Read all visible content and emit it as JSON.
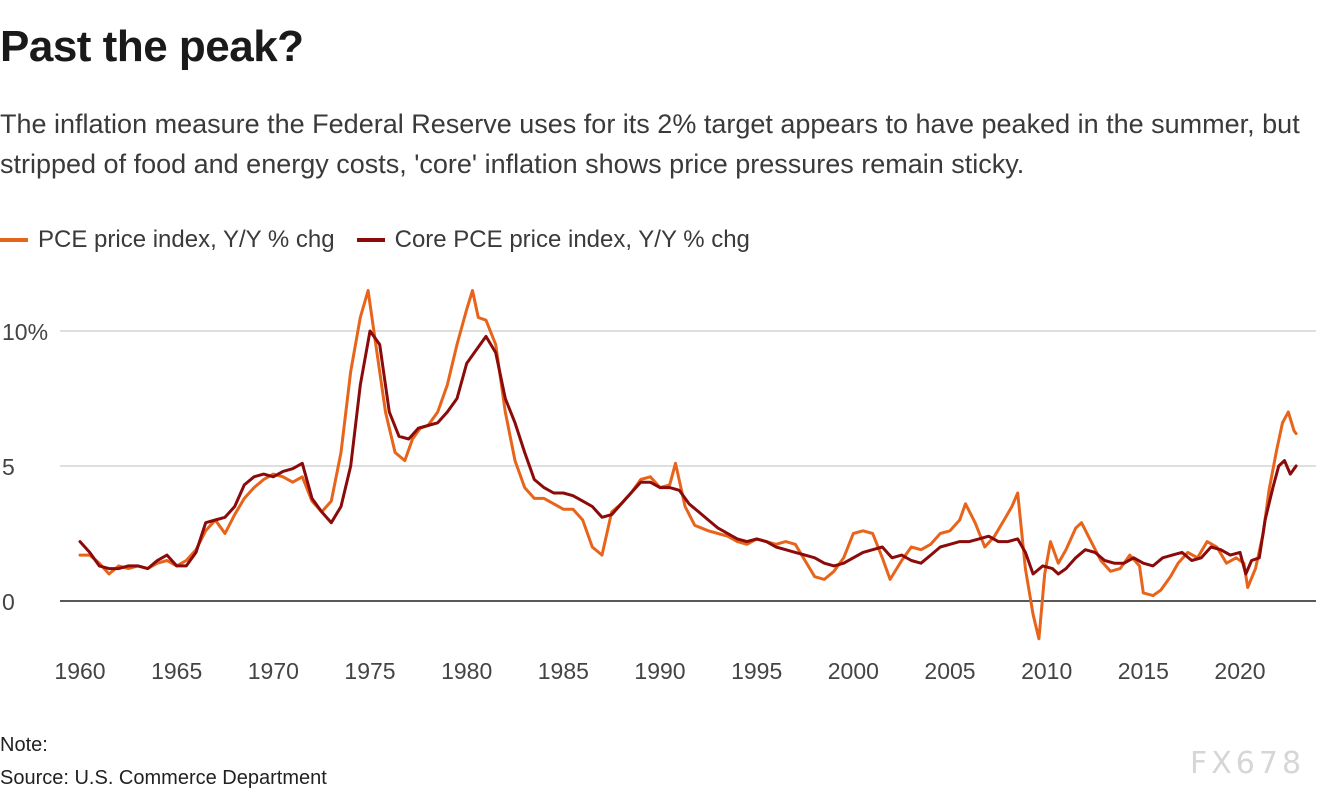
{
  "title": "Past the peak?",
  "subtitle": "The inflation measure the Federal Reserve uses for its 2% target appears to have peaked in the summer, but stripped of food and energy costs, 'core' inflation shows price pressures remain sticky.",
  "note": "Note:",
  "source": "Source: U.S. Commerce Department",
  "watermark": "FX678",
  "colors": {
    "pce": "#e8641b",
    "core": "#8b0a0a",
    "grid": "#cccccc",
    "axis": "#222222"
  },
  "chart_data": {
    "type": "line",
    "title": "Past the peak?",
    "xlabel": "",
    "ylabel": "",
    "xlim": [
      1959.6,
      2023.6
    ],
    "ylim": [
      -2,
      11.5
    ],
    "x_ticks": [
      1960,
      1965,
      1970,
      1975,
      1980,
      1985,
      1990,
      1995,
      2000,
      2005,
      2010,
      2015,
      2020
    ],
    "x_tick_labels": [
      "1960",
      "1965",
      "1970",
      "1975",
      "1980",
      "1985",
      "1990",
      "1995",
      "2000",
      "2005",
      "2010",
      "2015",
      "2020"
    ],
    "y_ticks": [
      0,
      5,
      10
    ],
    "y_tick_labels": [
      "0",
      "5",
      "10%"
    ],
    "legend_position": "top-left",
    "series": [
      {
        "name": "PCE price index, Y/Y % chg",
        "color": "#e8641b",
        "points": [
          [
            1960.0,
            1.7
          ],
          [
            1960.5,
            1.7
          ],
          [
            1961.0,
            1.4
          ],
          [
            1961.5,
            1.0
          ],
          [
            1962.0,
            1.3
          ],
          [
            1962.5,
            1.2
          ],
          [
            1963.0,
            1.3
          ],
          [
            1963.5,
            1.2
          ],
          [
            1964.0,
            1.4
          ],
          [
            1964.5,
            1.5
          ],
          [
            1965.0,
            1.3
          ],
          [
            1965.5,
            1.5
          ],
          [
            1966.0,
            1.9
          ],
          [
            1966.5,
            2.6
          ],
          [
            1967.0,
            3.0
          ],
          [
            1967.5,
            2.5
          ],
          [
            1968.0,
            3.2
          ],
          [
            1968.5,
            3.8
          ],
          [
            1969.0,
            4.2
          ],
          [
            1969.5,
            4.5
          ],
          [
            1970.0,
            4.7
          ],
          [
            1970.5,
            4.6
          ],
          [
            1971.0,
            4.4
          ],
          [
            1971.5,
            4.6
          ],
          [
            1972.0,
            3.7
          ],
          [
            1972.5,
            3.3
          ],
          [
            1973.0,
            3.7
          ],
          [
            1973.5,
            5.5
          ],
          [
            1974.0,
            8.5
          ],
          [
            1974.5,
            10.5
          ],
          [
            1974.9,
            11.5
          ],
          [
            1975.3,
            9.5
          ],
          [
            1975.8,
            7.0
          ],
          [
            1976.3,
            5.5
          ],
          [
            1976.8,
            5.2
          ],
          [
            1977.2,
            6.0
          ],
          [
            1977.6,
            6.4
          ],
          [
            1978.0,
            6.5
          ],
          [
            1978.5,
            7.0
          ],
          [
            1979.0,
            8.0
          ],
          [
            1979.5,
            9.5
          ],
          [
            1980.0,
            10.8
          ],
          [
            1980.3,
            11.5
          ],
          [
            1980.6,
            10.5
          ],
          [
            1981.0,
            10.4
          ],
          [
            1981.5,
            9.5
          ],
          [
            1982.0,
            7.0
          ],
          [
            1982.5,
            5.2
          ],
          [
            1983.0,
            4.2
          ],
          [
            1983.5,
            3.8
          ],
          [
            1984.0,
            3.8
          ],
          [
            1984.5,
            3.6
          ],
          [
            1985.0,
            3.4
          ],
          [
            1985.5,
            3.4
          ],
          [
            1986.0,
            3.0
          ],
          [
            1986.5,
            2.0
          ],
          [
            1987.0,
            1.7
          ],
          [
            1987.5,
            3.3
          ],
          [
            1988.0,
            3.6
          ],
          [
            1988.5,
            4.0
          ],
          [
            1989.0,
            4.5
          ],
          [
            1989.5,
            4.6
          ],
          [
            1990.0,
            4.2
          ],
          [
            1990.5,
            4.3
          ],
          [
            1990.8,
            5.1
          ],
          [
            1991.3,
            3.5
          ],
          [
            1991.8,
            2.8
          ],
          [
            1992.5,
            2.6
          ],
          [
            1993.0,
            2.5
          ],
          [
            1993.5,
            2.4
          ],
          [
            1994.0,
            2.2
          ],
          [
            1994.5,
            2.1
          ],
          [
            1995.0,
            2.3
          ],
          [
            1995.5,
            2.2
          ],
          [
            1996.0,
            2.1
          ],
          [
            1996.5,
            2.2
          ],
          [
            1997.0,
            2.1
          ],
          [
            1997.5,
            1.5
          ],
          [
            1998.0,
            0.9
          ],
          [
            1998.5,
            0.8
          ],
          [
            1999.0,
            1.1
          ],
          [
            1999.5,
            1.6
          ],
          [
            2000.0,
            2.5
          ],
          [
            2000.5,
            2.6
          ],
          [
            2001.0,
            2.5
          ],
          [
            2001.5,
            1.6
          ],
          [
            2001.9,
            0.8
          ],
          [
            2002.5,
            1.5
          ],
          [
            2003.0,
            2.0
          ],
          [
            2003.5,
            1.9
          ],
          [
            2004.0,
            2.1
          ],
          [
            2004.5,
            2.5
          ],
          [
            2005.0,
            2.6
          ],
          [
            2005.5,
            3.0
          ],
          [
            2005.8,
            3.6
          ],
          [
            2006.3,
            2.9
          ],
          [
            2006.8,
            2.0
          ],
          [
            2007.3,
            2.4
          ],
          [
            2007.8,
            3.0
          ],
          [
            2008.2,
            3.5
          ],
          [
            2008.5,
            4.0
          ],
          [
            2008.9,
            1.2
          ],
          [
            2009.3,
            -0.5
          ],
          [
            2009.6,
            -1.4
          ],
          [
            2009.9,
            1.0
          ],
          [
            2010.2,
            2.2
          ],
          [
            2010.6,
            1.4
          ],
          [
            2011.0,
            1.9
          ],
          [
            2011.5,
            2.7
          ],
          [
            2011.8,
            2.9
          ],
          [
            2012.3,
            2.2
          ],
          [
            2012.8,
            1.5
          ],
          [
            2013.3,
            1.1
          ],
          [
            2013.8,
            1.2
          ],
          [
            2014.3,
            1.7
          ],
          [
            2014.8,
            1.3
          ],
          [
            2015.0,
            0.3
          ],
          [
            2015.5,
            0.2
          ],
          [
            2015.9,
            0.4
          ],
          [
            2016.4,
            0.9
          ],
          [
            2016.8,
            1.4
          ],
          [
            2017.3,
            1.8
          ],
          [
            2017.8,
            1.6
          ],
          [
            2018.3,
            2.2
          ],
          [
            2018.8,
            2.0
          ],
          [
            2019.3,
            1.4
          ],
          [
            2019.8,
            1.6
          ],
          [
            2020.2,
            1.4
          ],
          [
            2020.4,
            0.5
          ],
          [
            2020.8,
            1.2
          ],
          [
            2021.2,
            2.5
          ],
          [
            2021.5,
            4.1
          ],
          [
            2021.9,
            5.6
          ],
          [
            2022.2,
            6.6
          ],
          [
            2022.5,
            7.0
          ],
          [
            2022.8,
            6.3
          ],
          [
            2022.9,
            6.2
          ]
        ]
      },
      {
        "name": "Core PCE price index, Y/Y % chg",
        "color": "#8b0a0a",
        "points": [
          [
            1960.0,
            2.2
          ],
          [
            1960.5,
            1.8
          ],
          [
            1961.0,
            1.3
          ],
          [
            1961.5,
            1.2
          ],
          [
            1962.0,
            1.2
          ],
          [
            1962.5,
            1.3
          ],
          [
            1963.0,
            1.3
          ],
          [
            1963.5,
            1.2
          ],
          [
            1964.0,
            1.5
          ],
          [
            1964.5,
            1.7
          ],
          [
            1965.0,
            1.3
          ],
          [
            1965.5,
            1.3
          ],
          [
            1966.0,
            1.8
          ],
          [
            1966.5,
            2.9
          ],
          [
            1967.0,
            3.0
          ],
          [
            1967.5,
            3.1
          ],
          [
            1968.0,
            3.5
          ],
          [
            1968.5,
            4.3
          ],
          [
            1969.0,
            4.6
          ],
          [
            1969.5,
            4.7
          ],
          [
            1970.0,
            4.6
          ],
          [
            1970.5,
            4.8
          ],
          [
            1971.0,
            4.9
          ],
          [
            1971.5,
            5.1
          ],
          [
            1972.0,
            3.8
          ],
          [
            1972.5,
            3.3
          ],
          [
            1973.0,
            2.9
          ],
          [
            1973.5,
            3.5
          ],
          [
            1974.0,
            5.0
          ],
          [
            1974.5,
            8.0
          ],
          [
            1975.0,
            10.0
          ],
          [
            1975.5,
            9.5
          ],
          [
            1976.0,
            7.0
          ],
          [
            1976.5,
            6.1
          ],
          [
            1977.0,
            6.0
          ],
          [
            1977.5,
            6.4
          ],
          [
            1978.0,
            6.5
          ],
          [
            1978.5,
            6.6
          ],
          [
            1979.0,
            7.0
          ],
          [
            1979.5,
            7.5
          ],
          [
            1980.0,
            8.8
          ],
          [
            1980.5,
            9.3
          ],
          [
            1981.0,
            9.8
          ],
          [
            1981.5,
            9.2
          ],
          [
            1982.0,
            7.5
          ],
          [
            1982.5,
            6.6
          ],
          [
            1983.0,
            5.5
          ],
          [
            1983.5,
            4.5
          ],
          [
            1984.0,
            4.2
          ],
          [
            1984.5,
            4.0
          ],
          [
            1985.0,
            4.0
          ],
          [
            1985.5,
            3.9
          ],
          [
            1986.0,
            3.7
          ],
          [
            1986.5,
            3.5
          ],
          [
            1987.0,
            3.1
          ],
          [
            1987.5,
            3.2
          ],
          [
            1988.0,
            3.6
          ],
          [
            1988.5,
            4.0
          ],
          [
            1989.0,
            4.4
          ],
          [
            1989.5,
            4.4
          ],
          [
            1990.0,
            4.2
          ],
          [
            1990.5,
            4.2
          ],
          [
            1991.0,
            4.1
          ],
          [
            1991.5,
            3.6
          ],
          [
            1992.0,
            3.3
          ],
          [
            1992.5,
            3.0
          ],
          [
            1993.0,
            2.7
          ],
          [
            1993.5,
            2.5
          ],
          [
            1994.0,
            2.3
          ],
          [
            1994.5,
            2.2
          ],
          [
            1995.0,
            2.3
          ],
          [
            1995.5,
            2.2
          ],
          [
            1996.0,
            2.0
          ],
          [
            1996.5,
            1.9
          ],
          [
            1997.0,
            1.8
          ],
          [
            1997.5,
            1.7
          ],
          [
            1998.0,
            1.6
          ],
          [
            1998.5,
            1.4
          ],
          [
            1999.0,
            1.3
          ],
          [
            1999.5,
            1.4
          ],
          [
            2000.0,
            1.6
          ],
          [
            2000.5,
            1.8
          ],
          [
            2001.0,
            1.9
          ],
          [
            2001.5,
            2.0
          ],
          [
            2002.0,
            1.6
          ],
          [
            2002.5,
            1.7
          ],
          [
            2003.0,
            1.5
          ],
          [
            2003.5,
            1.4
          ],
          [
            2004.0,
            1.7
          ],
          [
            2004.5,
            2.0
          ],
          [
            2005.0,
            2.1
          ],
          [
            2005.5,
            2.2
          ],
          [
            2006.0,
            2.2
          ],
          [
            2006.5,
            2.3
          ],
          [
            2007.0,
            2.4
          ],
          [
            2007.5,
            2.2
          ],
          [
            2008.0,
            2.2
          ],
          [
            2008.5,
            2.3
          ],
          [
            2008.9,
            1.8
          ],
          [
            2009.3,
            1.0
          ],
          [
            2009.8,
            1.3
          ],
          [
            2010.3,
            1.2
          ],
          [
            2010.6,
            1.0
          ],
          [
            2011.0,
            1.2
          ],
          [
            2011.5,
            1.6
          ],
          [
            2012.0,
            1.9
          ],
          [
            2012.5,
            1.8
          ],
          [
            2013.0,
            1.5
          ],
          [
            2013.5,
            1.4
          ],
          [
            2014.0,
            1.4
          ],
          [
            2014.5,
            1.6
          ],
          [
            2015.0,
            1.4
          ],
          [
            2015.5,
            1.3
          ],
          [
            2016.0,
            1.6
          ],
          [
            2016.5,
            1.7
          ],
          [
            2017.0,
            1.8
          ],
          [
            2017.5,
            1.5
          ],
          [
            2018.0,
            1.6
          ],
          [
            2018.5,
            2.0
          ],
          [
            2019.0,
            1.9
          ],
          [
            2019.5,
            1.7
          ],
          [
            2020.0,
            1.8
          ],
          [
            2020.3,
            1.0
          ],
          [
            2020.6,
            1.5
          ],
          [
            2021.0,
            1.6
          ],
          [
            2021.3,
            3.0
          ],
          [
            2021.7,
            4.2
          ],
          [
            2022.0,
            5.0
          ],
          [
            2022.3,
            5.2
          ],
          [
            2022.6,
            4.7
          ],
          [
            2022.9,
            5.0
          ]
        ]
      }
    ]
  }
}
